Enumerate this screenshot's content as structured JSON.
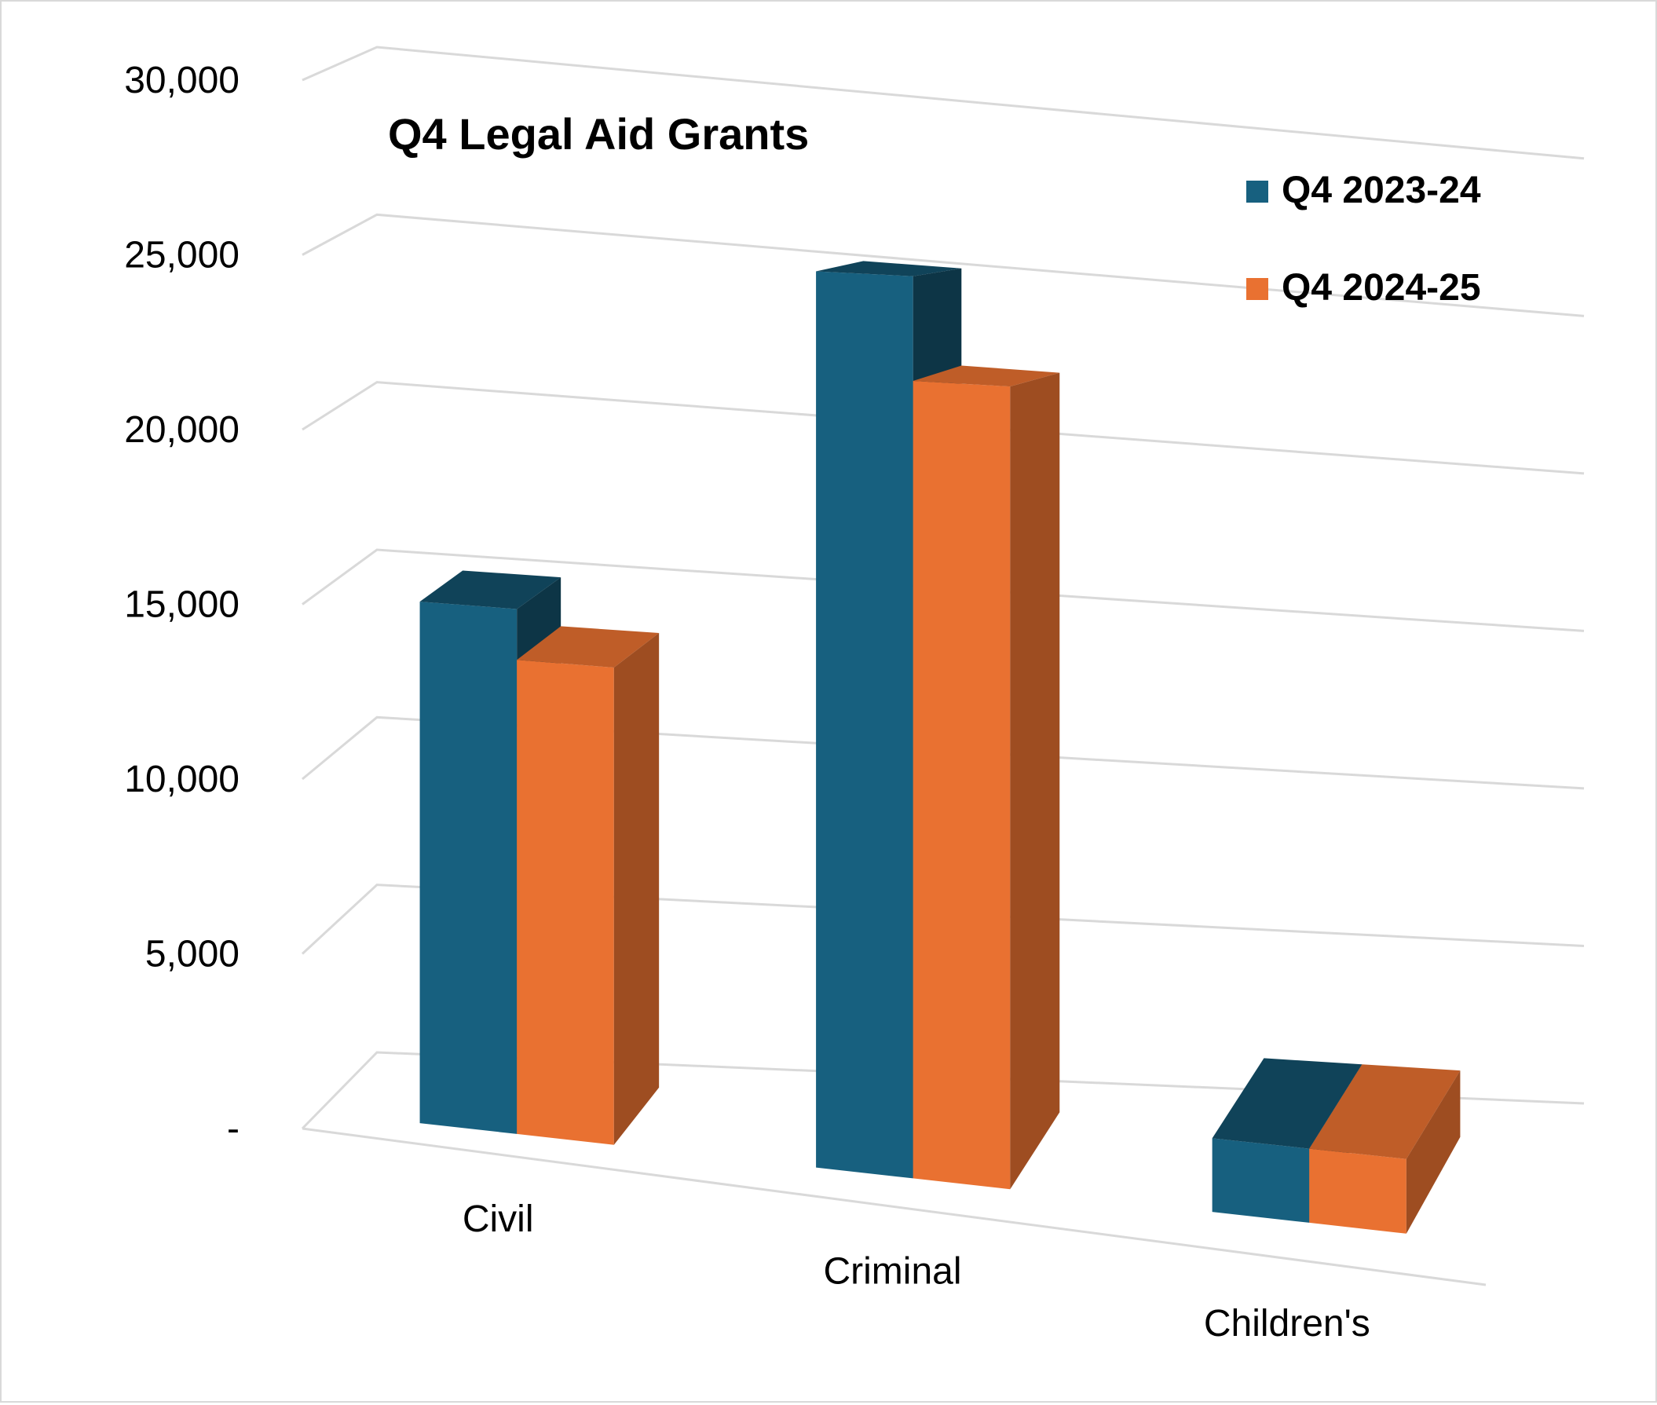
{
  "chart_data": {
    "type": "bar",
    "style": "3d-clustered-column",
    "title": "Q4 Legal Aid Grants",
    "categories": [
      "Civil",
      "Criminal",
      "Children's"
    ],
    "series": [
      {
        "name": "Q4 2023-24",
        "values": [
          14950,
          25000,
          2000
        ],
        "color": "#17607f"
      },
      {
        "name": "Q4 2024-25",
        "values": [
          13500,
          22100,
          2000
        ],
        "color": "#e97131"
      }
    ],
    "y_ticks": [
      "-",
      "5,000",
      "10,000",
      "15,000",
      "20,000",
      "25,000",
      "30,000"
    ],
    "ylim": [
      0,
      30000
    ],
    "xlabel": "",
    "ylabel": "",
    "legend_position": "top-right",
    "grid": true
  }
}
